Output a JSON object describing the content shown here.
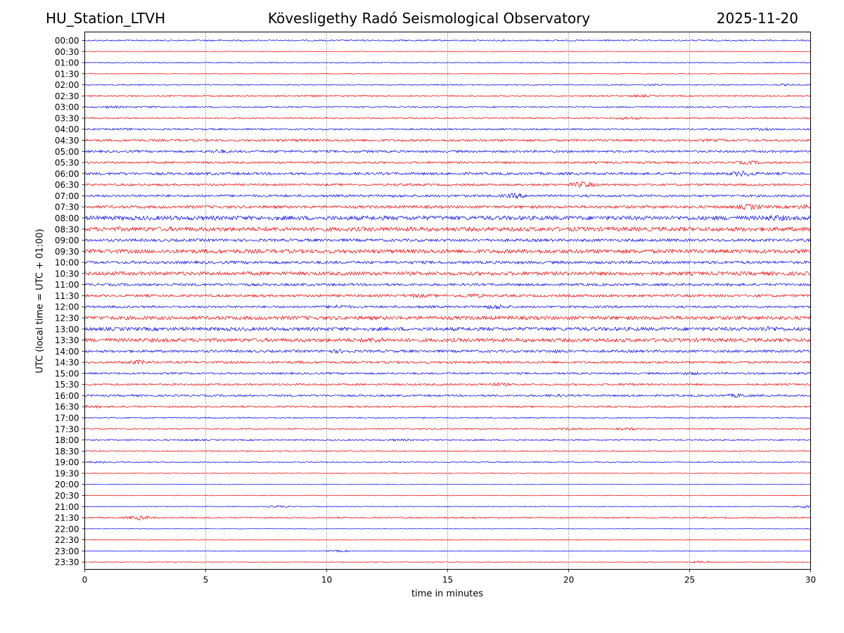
{
  "header": {
    "station": "HU_Station_LTVH",
    "title": "Kövesligethy Radó Seismological Observatory",
    "date": "2025-11-20"
  },
  "chart_data": {
    "type": "line",
    "title": "Kövesligethy Radó Seismological Observatory",
    "xlabel": "time in minutes",
    "ylabel": "UTC (local time = UTC + 01:00)",
    "xlim": [
      0,
      30
    ],
    "xticks": [
      0,
      5,
      10,
      15,
      20,
      25,
      30
    ],
    "vertical_gridlines_at": [
      5,
      10,
      15,
      20,
      25
    ],
    "colors": [
      "#0000ff",
      "#ff0000"
    ],
    "rows": [
      {
        "label": "00:00",
        "amp": 1,
        "bursts": [
          [
            5.5,
            1.2
          ],
          [
            13.0,
            1.2
          ]
        ]
      },
      {
        "label": "00:30",
        "amp": 0.5,
        "bursts": []
      },
      {
        "label": "01:00",
        "amp": 0.7,
        "bursts": []
      },
      {
        "label": "01:30",
        "amp": 0.5,
        "bursts": []
      },
      {
        "label": "02:00",
        "amp": 0.8,
        "bursts": [
          [
            23.5,
            1.5
          ],
          [
            29.0,
            1.5
          ]
        ]
      },
      {
        "label": "02:30",
        "amp": 1,
        "bursts": [
          [
            9.5,
            1.5
          ],
          [
            23.0,
            2
          ]
        ]
      },
      {
        "label": "03:00",
        "amp": 1,
        "bursts": [
          [
            1.2,
            2
          ],
          [
            2.7,
            1.5
          ]
        ]
      },
      {
        "label": "03:30",
        "amp": 1,
        "bursts": [
          [
            22.5,
            2.5
          ]
        ]
      },
      {
        "label": "04:00",
        "amp": 1.2,
        "bursts": [
          [
            1.8,
            2
          ],
          [
            28.0,
            2
          ]
        ]
      },
      {
        "label": "04:30",
        "amp": 1.6,
        "bursts": [
          [
            8.8,
            2
          ],
          [
            26.0,
            2
          ]
        ]
      },
      {
        "label": "05:00",
        "amp": 1.6,
        "bursts": [
          [
            5.5,
            3
          ],
          [
            8.0,
            2
          ],
          [
            11.5,
            2
          ],
          [
            15.0,
            1.5
          ]
        ]
      },
      {
        "label": "05:30",
        "amp": 1.5,
        "bursts": [
          [
            27.5,
            3
          ],
          [
            1.0,
            1.5
          ]
        ]
      },
      {
        "label": "06:00",
        "amp": 1.8,
        "bursts": [
          [
            1.5,
            2
          ],
          [
            5.5,
            2
          ],
          [
            27.2,
            4.5
          ]
        ]
      },
      {
        "label": "06:30",
        "amp": 1.5,
        "bursts": [
          [
            20.6,
            5
          ],
          [
            13.0,
            2
          ]
        ]
      },
      {
        "label": "07:00",
        "amp": 1.7,
        "bursts": [
          [
            13.0,
            2
          ],
          [
            17.8,
            4
          ]
        ]
      },
      {
        "label": "07:30",
        "amp": 2,
        "bursts": [
          [
            27.5,
            4.5
          ],
          [
            29.8,
            3.5
          ]
        ]
      },
      {
        "label": "08:00",
        "amp": 3,
        "bursts": [
          [
            0.3,
            2
          ],
          [
            28.5,
            4.5
          ],
          [
            10.0,
            2
          ]
        ]
      },
      {
        "label": "08:30",
        "amp": 3,
        "bursts": [
          [
            0.5,
            2
          ],
          [
            25.5,
            3
          ]
        ]
      },
      {
        "label": "09:00",
        "amp": 2,
        "bursts": []
      },
      {
        "label": "09:30",
        "amp": 2.8,
        "bursts": [
          [
            2.5,
            2
          ],
          [
            7.5,
            2
          ],
          [
            12.0,
            2
          ]
        ]
      },
      {
        "label": "10:00",
        "amp": 2,
        "bursts": [
          [
            10.5,
            1.5
          ]
        ]
      },
      {
        "label": "10:30",
        "amp": 2.6,
        "bursts": [
          [
            1.0,
            3
          ]
        ]
      },
      {
        "label": "11:00",
        "amp": 1.8,
        "bursts": [
          [
            3.5,
            2
          ],
          [
            6.5,
            2
          ]
        ]
      },
      {
        "label": "11:30",
        "amp": 1.8,
        "bursts": [
          [
            13.8,
            3
          ],
          [
            16.0,
            3.5
          ],
          [
            28.0,
            2
          ]
        ]
      },
      {
        "label": "12:00",
        "amp": 1.6,
        "bursts": [
          [
            10.5,
            3
          ],
          [
            14.0,
            2
          ],
          [
            17.0,
            4
          ]
        ]
      },
      {
        "label": "12:30",
        "amp": 2.6,
        "bursts": [
          [
            5.5,
            2
          ],
          [
            8.5,
            2
          ],
          [
            11.0,
            2
          ],
          [
            19.5,
            2
          ]
        ]
      },
      {
        "label": "13:00",
        "amp": 2.5,
        "bursts": [
          [
            27.0,
            2.5
          ],
          [
            28.3,
            4
          ]
        ]
      },
      {
        "label": "13:30",
        "amp": 2.6,
        "bursts": [
          [
            0.5,
            2
          ],
          [
            6.5,
            2
          ],
          [
            12.0,
            4
          ]
        ]
      },
      {
        "label": "14:00",
        "amp": 1.8,
        "bursts": [
          [
            10.5,
            3
          ],
          [
            19.5,
            2.5
          ],
          [
            29.8,
            2
          ]
        ]
      },
      {
        "label": "14:30",
        "amp": 1.6,
        "bursts": [
          [
            2.2,
            3.5
          ],
          [
            9.0,
            2
          ]
        ]
      },
      {
        "label": "15:00",
        "amp": 1.4,
        "bursts": [
          [
            25.0,
            2.5
          ],
          [
            29.5,
            2
          ]
        ]
      },
      {
        "label": "15:30",
        "amp": 1.4,
        "bursts": [
          [
            17.0,
            3
          ],
          [
            22.5,
            2
          ]
        ]
      },
      {
        "label": "16:00",
        "amp": 1.4,
        "bursts": [
          [
            19.5,
            2
          ],
          [
            27.0,
            3
          ]
        ]
      },
      {
        "label": "16:30",
        "amp": 1.2,
        "bursts": [
          [
            0.3,
            2
          ],
          [
            26.5,
            1.5
          ]
        ]
      },
      {
        "label": "17:00",
        "amp": 0.9,
        "bursts": []
      },
      {
        "label": "17:30",
        "amp": 0.9,
        "bursts": [
          [
            20.0,
            2
          ],
          [
            22.5,
            2
          ]
        ]
      },
      {
        "label": "18:00",
        "amp": 1,
        "bursts": [
          [
            13.0,
            1.8
          ],
          [
            4.5,
            1.5
          ]
        ]
      },
      {
        "label": "18:30",
        "amp": 0.8,
        "bursts": []
      },
      {
        "label": "19:00",
        "amp": 0.8,
        "bursts": [
          [
            0.5,
            1.5
          ]
        ]
      },
      {
        "label": "19:30",
        "amp": 0.6,
        "bursts": []
      },
      {
        "label": "20:00",
        "amp": 0.4,
        "bursts": []
      },
      {
        "label": "20:30",
        "amp": 0.5,
        "bursts": []
      },
      {
        "label": "21:00",
        "amp": 0.6,
        "bursts": [
          [
            8.0,
            1.8
          ],
          [
            29.8,
            2
          ]
        ]
      },
      {
        "label": "21:30",
        "amp": 1,
        "bursts": [
          [
            2.3,
            3.5
          ],
          [
            16.0,
            1.5
          ]
        ]
      },
      {
        "label": "22:00",
        "amp": 0.4,
        "bursts": []
      },
      {
        "label": "22:30",
        "amp": 0.5,
        "bursts": []
      },
      {
        "label": "23:00",
        "amp": 0.4,
        "bursts": [
          [
            10.5,
            1.5
          ]
        ]
      },
      {
        "label": "23:30",
        "amp": 0.5,
        "bursts": [
          [
            25.5,
            1.8
          ]
        ]
      }
    ]
  }
}
